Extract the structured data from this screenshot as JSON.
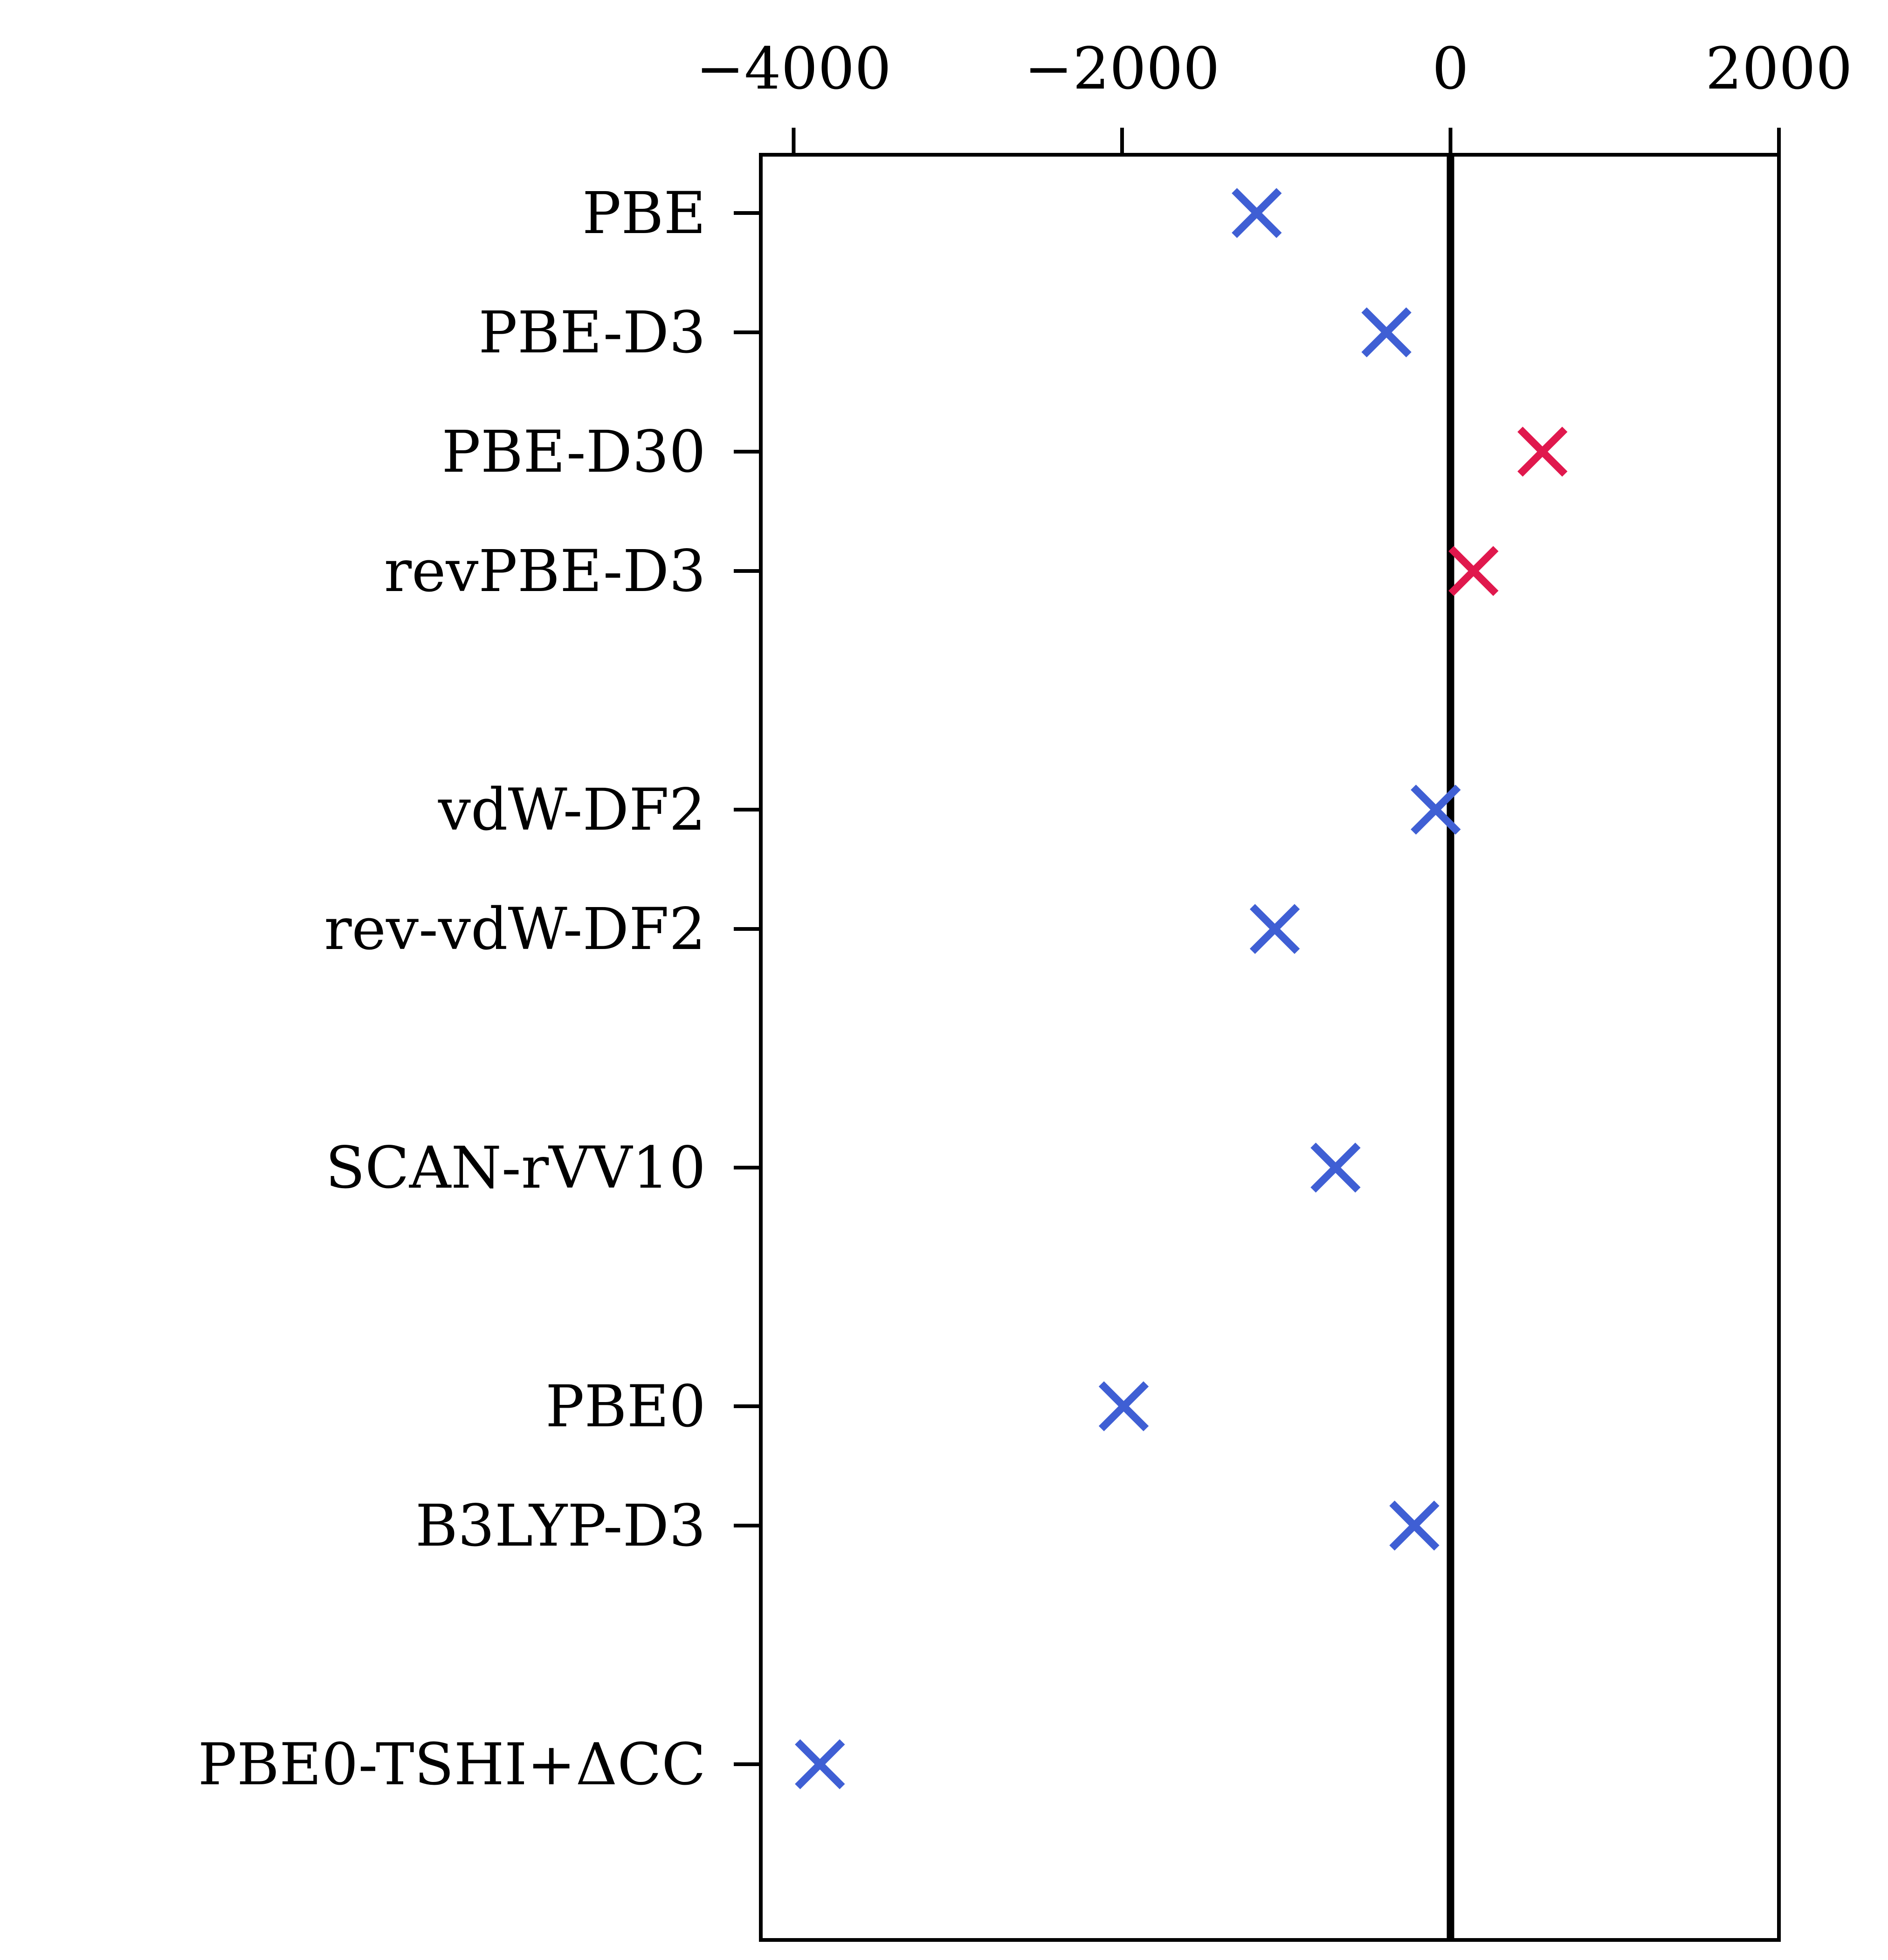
{
  "chart_data": {
    "type": "scatter",
    "title": "",
    "xlabel": "",
    "ylabel": "",
    "x_axis_position": "top",
    "xlim": [
      -4200,
      2000
    ],
    "xticks": [
      -4000,
      -2000,
      0,
      2000
    ],
    "xtick_labels": [
      "−4000",
      "−2000",
      "0",
      "2000"
    ],
    "reference_line_x": 0,
    "grid": false,
    "legend": "none",
    "marker": "x",
    "categories": [
      "PBE",
      "PBE-D3",
      "PBE-D30",
      "revPBE-D3",
      "",
      "vdW-DF2",
      "rev-vdW-DF2",
      "",
      "SCAN-rVV10",
      "",
      "PBE0",
      "B3LYP-D3",
      "",
      "PBE0-TSHI+ΔCC"
    ],
    "values": [
      -1180,
      -390,
      560,
      140,
      null,
      -90,
      -1070,
      null,
      -700,
      null,
      -1990,
      -220,
      null,
      -3840
    ],
    "colors": {
      "negative": "#3f5fd4",
      "positive": "#e0184d",
      "axis": "#000000"
    }
  }
}
